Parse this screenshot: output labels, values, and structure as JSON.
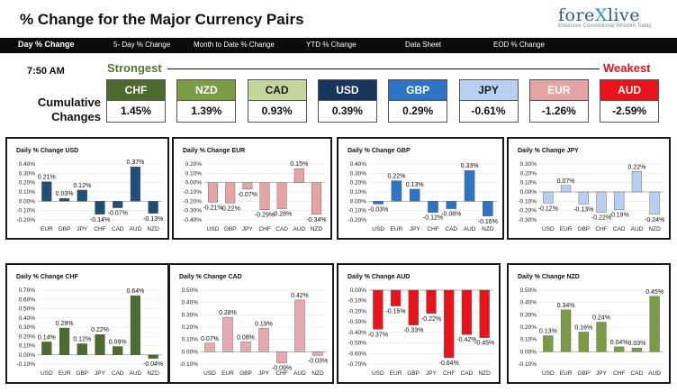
{
  "header": {
    "title": "% Change for the Major Currency Pairs",
    "logo_brand_a": "fore",
    "logo_brand_x": "X",
    "logo_brand_b": "live",
    "logo_tagline": "Extensive Conventional Wisdom Today"
  },
  "nav": [
    "Day % Change",
    "5- Day % Change",
    "Month to Date % Change",
    "YTD % Change",
    "Data Sheet",
    "EOD % Change"
  ],
  "time": "7:50 AM",
  "strongest_label": "Strongest",
  "weakest_label": "Weakest",
  "cumulative_label": "Cumulative Changes",
  "cumulative": [
    {
      "currency": "CHF",
      "value": "1.45%",
      "color": "#4d6b2e",
      "text_color": "#ffffff"
    },
    {
      "currency": "NZD",
      "value": "1.39%",
      "color": "#7a9c45",
      "text_color": "#ffffff"
    },
    {
      "currency": "CAD",
      "value": "0.93%",
      "color": "#c3d69b",
      "text_color": "#1a1a1a"
    },
    {
      "currency": "USD",
      "value": "0.39%",
      "color": "#17365d",
      "text_color": "#ffffff"
    },
    {
      "currency": "GBP",
      "value": "0.29%",
      "color": "#2f75c6",
      "text_color": "#ffffff"
    },
    {
      "currency": "JPY",
      "value": "-0.61%",
      "color": "#b7cff2",
      "text_color": "#1a1a1a"
    },
    {
      "currency": "EUR",
      "value": "-1.26%",
      "color": "#e6a3a3",
      "text_color": "#ffffff"
    },
    {
      "currency": "AUD",
      "value": "-2.59%",
      "color": "#e8141a",
      "text_color": "#ffffff"
    }
  ],
  "chart_data": [
    {
      "type": "bar",
      "title": "Daily % Change USD",
      "categories": [
        "EUR",
        "GBP",
        "JPY",
        "CHF",
        "CAD",
        "AUD",
        "NZD"
      ],
      "values": [
        0.21,
        0.03,
        0.12,
        -0.14,
        -0.07,
        0.37,
        -0.13
      ],
      "labels": [
        "0.21%",
        "0.03%",
        "0.12%",
        "-0.14%",
        "-0.07%",
        "0.37%",
        "-0.13%"
      ],
      "ticks": [
        "0.40%",
        "0.30%",
        "0.20%",
        "0.10%",
        "0.00%",
        "-0.10%",
        "-0.20%"
      ],
      "ylim": [
        -0.2,
        0.4
      ],
      "tick_step": 0.1,
      "color": "#1f4e79"
    },
    {
      "type": "bar",
      "title": "Daily % Change EUR",
      "categories": [
        "USD",
        "GBP",
        "JPY",
        "CHF",
        "CAD",
        "AUD",
        "NZD"
      ],
      "values": [
        -0.21,
        -0.22,
        -0.07,
        -0.29,
        -0.28,
        0.15,
        -0.34
      ],
      "labels": [
        "-0.21%",
        "-0.22%",
        "-0.07%",
        "-0.29%",
        "-0.28%",
        "0.15%",
        "-0.34%"
      ],
      "ticks": [
        "0.20%",
        "0.10%",
        "0.00%",
        "-0.10%",
        "-0.20%",
        "-0.30%",
        "-0.40%"
      ],
      "ylim": [
        -0.4,
        0.2
      ],
      "tick_step": 0.1,
      "color": "#e6a3a3"
    },
    {
      "type": "bar",
      "title": "Daily % Change GBP",
      "categories": [
        "USD",
        "EUR",
        "JPY",
        "CHF",
        "CAD",
        "AUD",
        "NZD"
      ],
      "values": [
        -0.03,
        0.22,
        0.13,
        -0.12,
        -0.08,
        0.33,
        -0.16
      ],
      "labels": [
        "-0.03%",
        "0.22%",
        "0.13%",
        "-0.12%",
        "-0.08%",
        "0.33%",
        "-0.16%"
      ],
      "ticks": [
        "0.40%",
        "0.30%",
        "0.20%",
        "0.10%",
        "0.00%",
        "-0.10%",
        "-0.20%"
      ],
      "ylim": [
        -0.2,
        0.4
      ],
      "tick_step": 0.1,
      "color": "#2f75c6"
    },
    {
      "type": "bar",
      "title": "Daily % Change JPY",
      "categories": [
        "USD",
        "EUR",
        "GBP",
        "CHF",
        "CAD",
        "AUD",
        "NZD"
      ],
      "values": [
        -0.12,
        0.07,
        -0.13,
        -0.22,
        -0.19,
        0.22,
        -0.24
      ],
      "labels": [
        "-0.12%",
        "0.07%",
        "-0.13%",
        "-0.22%",
        "-0.19%",
        "0.22%",
        "-0.24%"
      ],
      "ticks": [
        "0.30%",
        "0.20%",
        "0.10%",
        "0.00%",
        "-0.10%",
        "-0.20%",
        "-0.30%"
      ],
      "ylim": [
        -0.3,
        0.3
      ],
      "tick_step": 0.1,
      "color": "#b7cff2"
    },
    {
      "type": "bar",
      "title": "Daily % Change CHF",
      "categories": [
        "USD",
        "EUR",
        "GBP",
        "JPY",
        "CAD",
        "AUD",
        "NZD"
      ],
      "values": [
        0.14,
        0.29,
        0.12,
        0.22,
        0.09,
        0.64,
        -0.04
      ],
      "labels": [
        "0.14%",
        "0.29%",
        "0.12%",
        "0.22%",
        "0.09%",
        "0.64%",
        "-0.04%"
      ],
      "ticks": [
        "0.70%",
        "0.60%",
        "0.50%",
        "0.40%",
        "0.30%",
        "0.20%",
        "0.10%",
        "0.00%",
        "-0.10%"
      ],
      "ylim": [
        -0.1,
        0.7
      ],
      "tick_step": 0.1,
      "color": "#4d6b2e"
    },
    {
      "type": "bar",
      "title": "Daily % Change CAD",
      "categories": [
        "USD",
        "EUR",
        "GBP",
        "JPY",
        "CHF",
        "AUD",
        "NZD"
      ],
      "values": [
        0.07,
        0.28,
        0.08,
        0.19,
        -0.09,
        0.42,
        -0.03
      ],
      "labels": [
        "0.07%",
        "0.28%",
        "0.08%",
        "0.19%",
        "-0.09%",
        "0.42%",
        "-0.03%"
      ],
      "ticks": [
        "0.50%",
        "0.40%",
        "0.30%",
        "0.20%",
        "0.10%",
        "0.00%",
        "-0.10%"
      ],
      "ylim": [
        -0.1,
        0.5
      ],
      "tick_step": 0.1,
      "color": "#e6a9ad"
    },
    {
      "type": "bar",
      "title": "Daily % Change AUD",
      "categories": [
        "USD",
        "EUR",
        "GBP",
        "JPY",
        "CHF",
        "CAD",
        "NZD"
      ],
      "values": [
        -0.37,
        -0.15,
        -0.33,
        -0.22,
        -0.64,
        -0.42,
        -0.45
      ],
      "labels": [
        "-0.37%",
        "-0.15%",
        "-0.33%",
        "-0.22%",
        "-0.64%",
        "-0.42%",
        "-0.45%"
      ],
      "ticks": [
        "0.00%",
        "-0.10%",
        "-0.20%",
        "-0.30%",
        "-0.40%",
        "-0.50%",
        "-0.60%",
        "-0.70%"
      ],
      "ylim": [
        -0.7,
        0.0
      ],
      "tick_step": 0.1,
      "color": "#e8141a"
    },
    {
      "type": "bar",
      "title": "Daily % Change NZD",
      "categories": [
        "USD",
        "EUR",
        "GBP",
        "JPY",
        "CHF",
        "CAD",
        "AUD"
      ],
      "values": [
        0.13,
        0.34,
        0.16,
        0.24,
        0.04,
        0.03,
        0.45
      ],
      "labels": [
        "0.13%",
        "0.34%",
        "0.16%",
        "0.24%",
        "0.04%",
        "0.03%",
        "0.45%"
      ],
      "ticks": [
        "0.50%",
        "0.40%",
        "0.30%",
        "0.20%",
        "0.10%",
        "0.00%",
        "-0.10%"
      ],
      "ylim": [
        -0.1,
        0.5
      ],
      "tick_step": 0.1,
      "color": "#7a9c45"
    }
  ]
}
